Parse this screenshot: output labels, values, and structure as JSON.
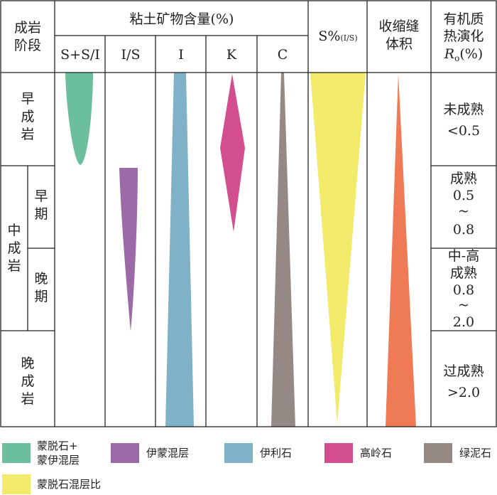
{
  "header": {
    "stage": [
      "成岩",
      "阶段"
    ],
    "clay_group": "粘土矿物含量(%)",
    "columns": [
      "S+S/I",
      "I/S",
      "I",
      "K",
      "C"
    ],
    "s_ratio_main": "S%",
    "s_ratio_sub": "(I/S)",
    "shrink": [
      "收缩缝",
      "体积"
    ],
    "thermal": [
      "有机质",
      "热演化"
    ],
    "ro_r": "R",
    "ro_sub": "o",
    "ro_tail": "(%)"
  },
  "stages": {
    "early": [
      "早",
      "成",
      "岩"
    ],
    "middle": [
      "中",
      "成",
      "岩"
    ],
    "middle_early": [
      "早",
      "期"
    ],
    "middle_late": [
      "晚",
      "期"
    ],
    "late": [
      "晚",
      "成",
      "岩"
    ]
  },
  "maturity": {
    "row1": [
      "未成熟",
      "<0.5"
    ],
    "row2": [
      "成熟",
      "0.5",
      "~",
      "0.8"
    ],
    "row3": [
      "中-高",
      "成熟",
      "0.8",
      "~",
      "2.0"
    ],
    "row4": [
      "过成熟",
      ">2.0"
    ]
  },
  "colors": {
    "smectite": "#6bbf9c",
    "illite_smectite": "#9c6aa6",
    "illite": "#7fb1c7",
    "kaolinite": "#d24e8e",
    "chlorite": "#958986",
    "s_ratio": "#f1ea6a",
    "shrinkage": "#ef7a56",
    "grid": "#222222"
  },
  "legend": [
    {
      "line1": "蒙脱石+",
      "line2": "蒙伊混层",
      "color": "#6bbf9c"
    },
    {
      "line1": "伊蒙混层",
      "color": "#9c6aa6"
    },
    {
      "line1": "伊利石",
      "color": "#7fb1c7"
    },
    {
      "line1": "高岭石",
      "color": "#d24e8e"
    },
    {
      "line1": "绿泥石",
      "color": "#958986"
    },
    {
      "line1": "蒙脱石混层比",
      "color": "#f1ea6a"
    }
  ]
}
